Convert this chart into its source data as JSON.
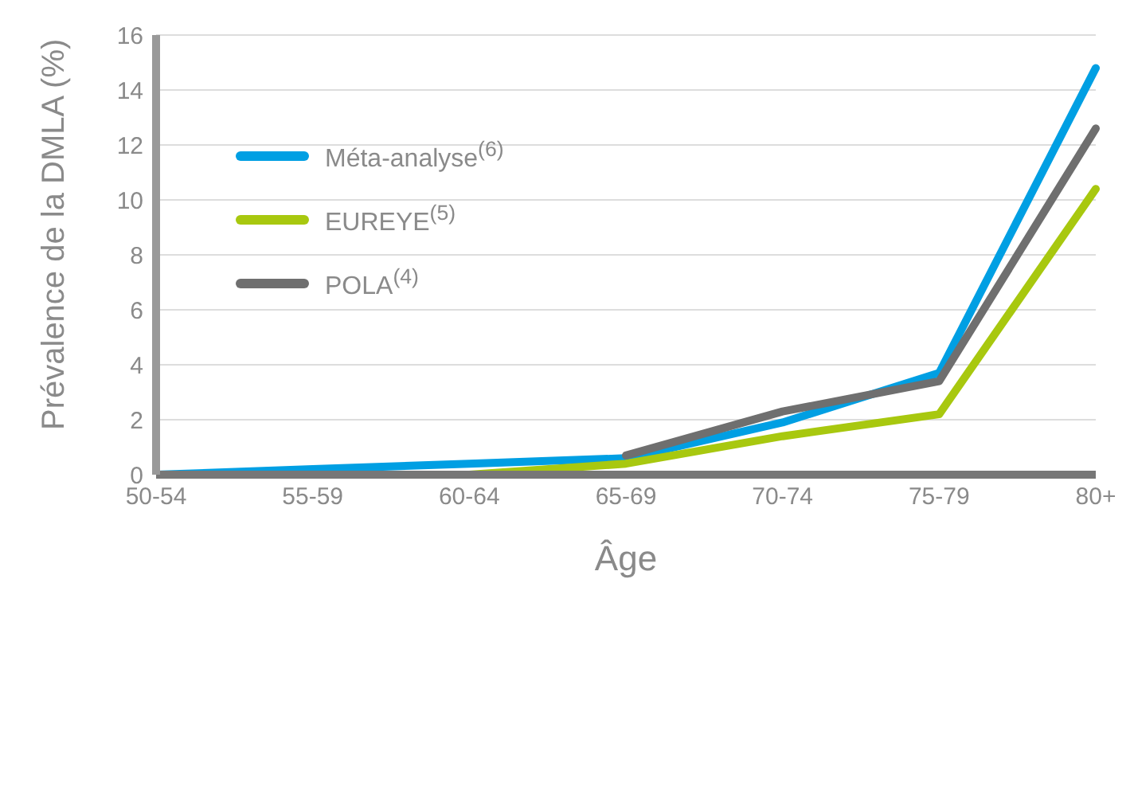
{
  "chart_data": {
    "type": "line",
    "xlabel": "Âge",
    "ylabel": "Prévalence de la DMLA (%)",
    "categories": [
      "50-54",
      "55-59",
      "60-64",
      "65-69",
      "70-74",
      "75-79",
      "80+"
    ],
    "series": [
      {
        "name": "Méta-analyse$^{(6)}$",
        "color": "#009fe3",
        "values": [
          0,
          0.2,
          0.4,
          0.6,
          1.9,
          3.7,
          14.8
        ]
      },
      {
        "name": "EUREYE$^{(5)}$",
        "color": "#a8c80f",
        "values": [
          null,
          null,
          0,
          0.4,
          1.4,
          2.2,
          10.4
        ]
      },
      {
        "name": "POLA$^{(4)}$",
        "color": "#6f6f6f",
        "values": [
          null,
          null,
          null,
          0.7,
          2.3,
          3.4,
          12.6
        ]
      }
    ],
    "ylim": [
      0,
      16
    ],
    "yticks": [
      0,
      2,
      4,
      6,
      8,
      10,
      12,
      14,
      16
    ],
    "grid": "y",
    "legend": "top left",
    "marker": "none",
    "line_style": "solid"
  }
}
